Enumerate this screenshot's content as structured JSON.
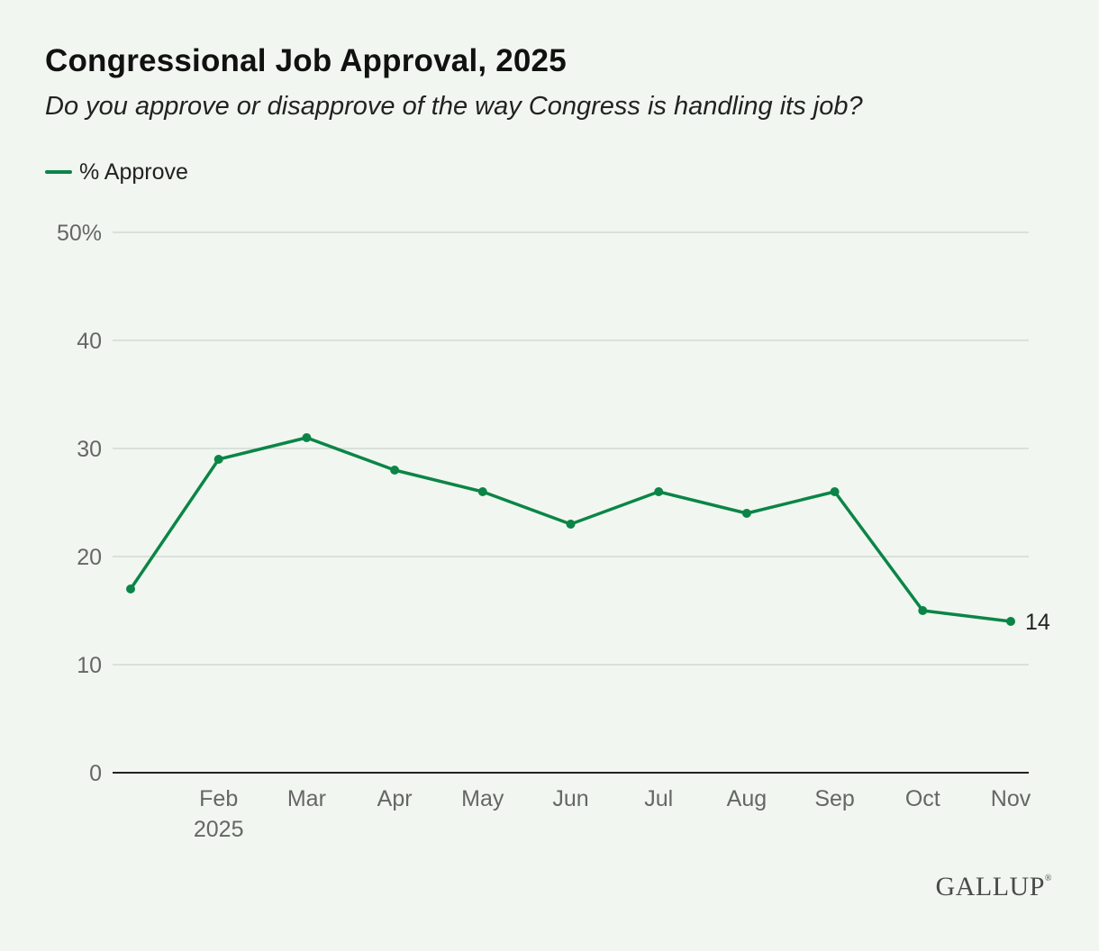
{
  "header": {
    "title": "Congressional Job Approval, 2025",
    "subtitle": "Do you approve or disapprove of the way Congress is handling its job?"
  },
  "legend": {
    "label": "% Approve"
  },
  "colors": {
    "series": "#0b8547",
    "grid": "#d3d9d2",
    "axis": "#222222",
    "tick_text": "#666666",
    "background": "#f1f7f0"
  },
  "chart_data": {
    "type": "line",
    "title": "Congressional Job Approval, 2025",
    "subtitle": "Do you approve or disapprove of the way Congress is handling its job?",
    "xlabel": "",
    "ylabel": "",
    "x_tick_labels": [
      "",
      "Feb",
      "Mar",
      "Apr",
      "May",
      "Jun",
      "Jul",
      "Aug",
      "Sep",
      "Oct",
      "Nov"
    ],
    "x_tick_sublabel": {
      "index": 1,
      "text": "2025"
    },
    "y_tick_labels": [
      "0",
      "10",
      "20",
      "30",
      "40",
      "50%"
    ],
    "y_ticks": [
      0,
      10,
      20,
      30,
      40,
      50
    ],
    "ylim": [
      0,
      50
    ],
    "grid": true,
    "legend_position": "top-left",
    "series": [
      {
        "name": "% Approve",
        "values": [
          17,
          29,
          31,
          28,
          26,
          23,
          26,
          24,
          26,
          15,
          14
        ]
      }
    ],
    "end_label": {
      "index": 10,
      "text": "14"
    }
  },
  "brand": {
    "name": "GALLUP",
    "mark": "®"
  }
}
